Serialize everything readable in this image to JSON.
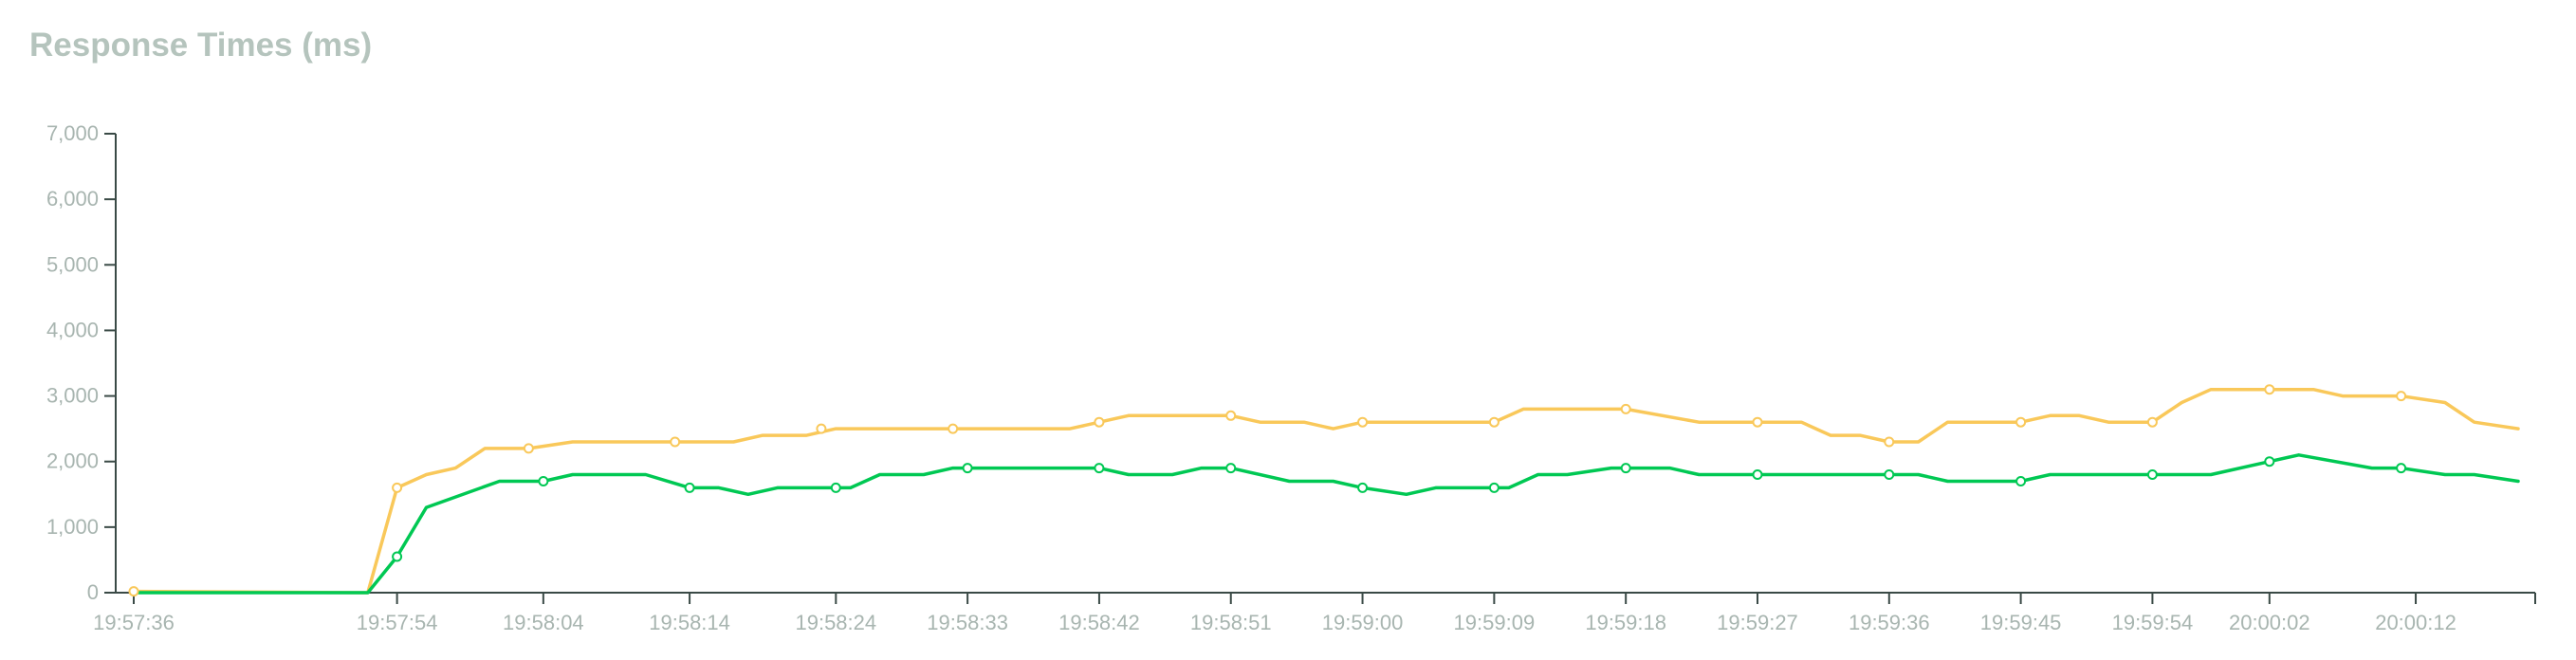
{
  "chart_data": {
    "type": "line",
    "title": "Response Times (ms)",
    "xlabel": "",
    "ylabel": "",
    "ylim": [
      0,
      7000
    ],
    "yticks": [
      0,
      1000,
      2000,
      3000,
      4000,
      5000,
      6000,
      7000
    ],
    "ytick_labels": [
      "0",
      "1,000",
      "2,000",
      "3,000",
      "4,000",
      "5,000",
      "6,000",
      "7,000"
    ],
    "xtick_labels": [
      "19:57:36",
      "19:57:54",
      "19:58:04",
      "19:58:14",
      "19:58:24",
      "19:58:33",
      "19:58:42",
      "19:58:51",
      "19:59:00",
      "19:59:09",
      "19:59:18",
      "19:59:27",
      "19:59:36",
      "19:59:45",
      "19:59:54",
      "20:00:02",
      "20:00:12"
    ],
    "grid": false,
    "legend": "none",
    "x_start": "19:57:36",
    "x_end": "20:00:19",
    "series": [
      {
        "color": "#f9c85a",
        "points": [
          [
            "19:57:36",
            20
          ],
          [
            "19:57:52",
            0
          ],
          [
            "19:57:54",
            1600
          ],
          [
            "19:57:56",
            1800
          ],
          [
            "19:57:58",
            1900
          ],
          [
            "19:58:00",
            2200
          ],
          [
            "19:58:03",
            2200
          ],
          [
            "19:58:06",
            2300
          ],
          [
            "19:58:13",
            2300
          ],
          [
            "19:58:17",
            2300
          ],
          [
            "19:58:19",
            2400
          ],
          [
            "19:58:22",
            2400
          ],
          [
            "19:58:24",
            2500
          ],
          [
            "19:58:32",
            2500
          ],
          [
            "19:58:40",
            2500
          ],
          [
            "19:58:42",
            2600
          ],
          [
            "19:58:44",
            2700
          ],
          [
            "19:58:51",
            2700
          ],
          [
            "19:58:53",
            2600
          ],
          [
            "19:58:56",
            2600
          ],
          [
            "19:58:58",
            2500
          ],
          [
            "19:59:00",
            2600
          ],
          [
            "19:59:09",
            2600
          ],
          [
            "19:59:11",
            2800
          ],
          [
            "19:59:18",
            2800
          ],
          [
            "19:59:23",
            2600
          ],
          [
            "19:59:27",
            2600
          ],
          [
            "19:59:30",
            2600
          ],
          [
            "19:59:32",
            2400
          ],
          [
            "19:59:34",
            2400
          ],
          [
            "19:59:36",
            2300
          ],
          [
            "19:59:38",
            2300
          ],
          [
            "19:59:40",
            2600
          ],
          [
            "19:59:45",
            2600
          ],
          [
            "19:59:47",
            2700
          ],
          [
            "19:59:49",
            2700
          ],
          [
            "19:59:51",
            2600
          ],
          [
            "19:59:54",
            2600
          ],
          [
            "19:59:56",
            2900
          ],
          [
            "19:59:58",
            3100
          ],
          [
            "20:00:02",
            3100
          ],
          [
            "20:00:05",
            3100
          ],
          [
            "20:00:07",
            3000
          ],
          [
            "20:00:11",
            3000
          ],
          [
            "20:00:14",
            2900
          ],
          [
            "20:00:16",
            2600
          ],
          [
            "20:00:19",
            2500
          ]
        ],
        "markers": [
          [
            "19:57:36",
            20
          ],
          [
            "19:57:54",
            1600
          ],
          [
            "19:58:03",
            2200
          ],
          [
            "19:58:13",
            2300
          ],
          [
            "19:58:23",
            2500
          ],
          [
            "19:58:32",
            2500
          ],
          [
            "19:58:42",
            2600
          ],
          [
            "19:58:51",
            2700
          ],
          [
            "19:59:00",
            2600
          ],
          [
            "19:59:09",
            2600
          ],
          [
            "19:59:18",
            2800
          ],
          [
            "19:59:27",
            2600
          ],
          [
            "19:59:36",
            2300
          ],
          [
            "19:59:45",
            2600
          ],
          [
            "19:59:54",
            2600
          ],
          [
            "20:00:02",
            3100
          ],
          [
            "20:00:11",
            3000
          ]
        ]
      },
      {
        "color": "#00c853",
        "points": [
          [
            "19:57:36",
            0
          ],
          [
            "19:57:52",
            0
          ],
          [
            "19:57:54",
            550
          ],
          [
            "19:57:56",
            1300
          ],
          [
            "19:58:01",
            1700
          ],
          [
            "19:58:04",
            1700
          ],
          [
            "19:58:06",
            1800
          ],
          [
            "19:58:11",
            1800
          ],
          [
            "19:58:14",
            1600
          ],
          [
            "19:58:16",
            1600
          ],
          [
            "19:58:18",
            1500
          ],
          [
            "19:58:20",
            1600
          ],
          [
            "19:58:25",
            1600
          ],
          [
            "19:58:27",
            1800
          ],
          [
            "19:58:30",
            1800
          ],
          [
            "19:58:32",
            1900
          ],
          [
            "19:58:42",
            1900
          ],
          [
            "19:58:44",
            1800
          ],
          [
            "19:58:47",
            1800
          ],
          [
            "19:58:49",
            1900
          ],
          [
            "19:58:51",
            1900
          ],
          [
            "19:58:55",
            1700
          ],
          [
            "19:58:58",
            1700
          ],
          [
            "19:59:00",
            1600
          ],
          [
            "19:59:03",
            1500
          ],
          [
            "19:59:05",
            1600
          ],
          [
            "19:59:10",
            1600
          ],
          [
            "19:59:12",
            1800
          ],
          [
            "19:59:14",
            1800
          ],
          [
            "19:59:17",
            1900
          ],
          [
            "19:59:21",
            1900
          ],
          [
            "19:59:23",
            1800
          ],
          [
            "19:59:36",
            1800
          ],
          [
            "19:59:38",
            1800
          ],
          [
            "19:59:40",
            1700
          ],
          [
            "19:59:45",
            1700
          ],
          [
            "19:59:47",
            1800
          ],
          [
            "19:59:56",
            1800
          ],
          [
            "19:59:58",
            1800
          ],
          [
            "20:00:02",
            2000
          ],
          [
            "20:00:04",
            2100
          ],
          [
            "20:00:09",
            1900
          ],
          [
            "20:00:11",
            1900
          ],
          [
            "20:00:14",
            1800
          ],
          [
            "20:00:16",
            1800
          ],
          [
            "20:00:19",
            1700
          ]
        ],
        "markers": [
          [
            "19:57:54",
            550
          ],
          [
            "19:58:04",
            1700
          ],
          [
            "19:58:14",
            1600
          ],
          [
            "19:58:24",
            1600
          ],
          [
            "19:58:33",
            1900
          ],
          [
            "19:58:42",
            1900
          ],
          [
            "19:58:51",
            1900
          ],
          [
            "19:59:00",
            1600
          ],
          [
            "19:59:09",
            1600
          ],
          [
            "19:59:18",
            1900
          ],
          [
            "19:59:27",
            1800
          ],
          [
            "19:59:36",
            1800
          ],
          [
            "19:59:45",
            1700
          ],
          [
            "19:59:54",
            1800
          ],
          [
            "20:00:02",
            2000
          ],
          [
            "20:00:11",
            1900
          ]
        ]
      }
    ]
  }
}
